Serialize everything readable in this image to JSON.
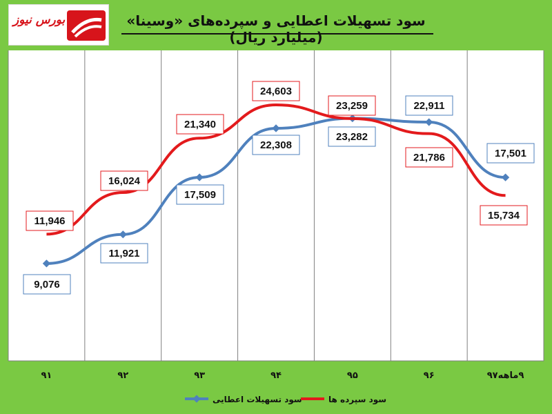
{
  "header": {
    "title": "سود تسهیلات اعطایی و سپرده‌های «وسینا» (میلیارد ریال)",
    "logo_text": "بورس نیوز"
  },
  "colors": {
    "background": "#7ac943",
    "plot_area": "#ffffff",
    "loans_series": "#4f81bd",
    "deposits_series": "#e31a1c",
    "logo_red": "#d7141b"
  },
  "chart_data": {
    "type": "line",
    "title": "سود تسهیلات اعطایی و سپرده‌های «وسینا» (میلیارد ریال)",
    "categories": [
      "۹۱",
      "۹۲",
      "۹۳",
      "۹۴",
      "۹۵",
      "۹۶",
      "۹ماهه۹۷"
    ],
    "series": [
      {
        "name": "سود تسهیلات اعطایی",
        "values": [
          9076,
          11921,
          17509,
          22308,
          23282,
          22911,
          17501
        ],
        "labels": [
          "9,076",
          "11,921",
          "17,509",
          "22,308",
          "23,282",
          "22,911",
          "17,501"
        ]
      },
      {
        "name": "سود سپرده ها",
        "values": [
          11946,
          16024,
          21340,
          24603,
          23259,
          21786,
          15734
        ],
        "labels": [
          "11,946",
          "16,024",
          "21,340",
          "24,603",
          "23,259",
          "21,786",
          "15,734"
        ]
      }
    ],
    "ylim": [
      0,
      28000
    ],
    "grid": "vertical",
    "legend": "bottom-center"
  }
}
